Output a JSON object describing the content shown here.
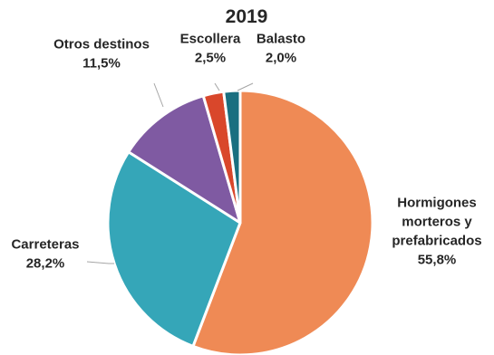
{
  "chart_data": {
    "type": "pie",
    "title": "2019",
    "categories": [
      "Hormigones morteros y prefabricados",
      "Carreteras",
      "Otros destinos",
      "Escollera",
      "Balasto"
    ],
    "values": [
      55.8,
      28.2,
      11.5,
      2.5,
      2.0
    ],
    "value_unit": "%",
    "slices": [
      {
        "name": "Hormigones morteros y prefabricados",
        "label_lines": [
          "Hormigones",
          "morteros y",
          "prefabricados"
        ],
        "value": 55.8,
        "value_label": "55,8%",
        "color": "#ef8a55"
      },
      {
        "name": "Carreteras",
        "label_lines": [
          "Carreteras"
        ],
        "value": 28.2,
        "value_label": "28,2%",
        "color": "#35a6b8"
      },
      {
        "name": "Otros destinos",
        "label_lines": [
          "Otros destinos"
        ],
        "value": 11.5,
        "value_label": "11,5%",
        "color": "#7f5aa2"
      },
      {
        "name": "Escollera",
        "label_lines": [
          "Escollera"
        ],
        "value": 2.5,
        "value_label": "2,5%",
        "color": "#d9472b"
      },
      {
        "name": "Balasto",
        "label_lines": [
          "Balasto"
        ],
        "value": 2.0,
        "value_label": "2,0%",
        "color": "#1a6f80"
      }
    ],
    "legend": "none"
  }
}
